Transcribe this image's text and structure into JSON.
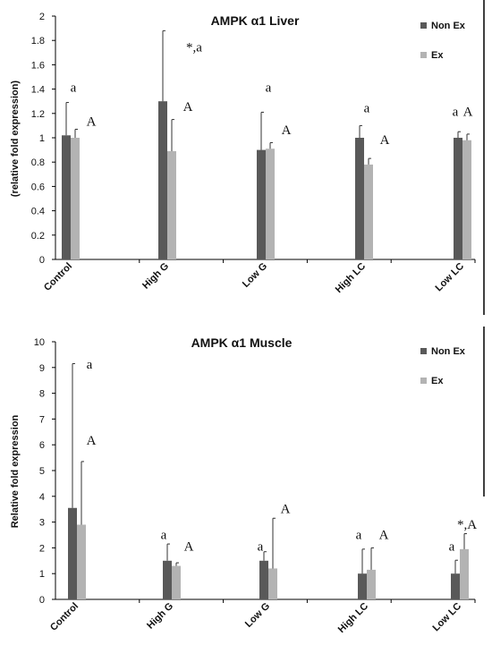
{
  "chart_data": [
    {
      "type": "bar",
      "title": "AMPK α1  Liver",
      "ylabel": "(relative fold expression)",
      "xlabel": "",
      "ylim": [
        0,
        2
      ],
      "yticks": [
        "0",
        "0.2",
        "0.4",
        "0.6",
        "0.8",
        "1",
        "1.2",
        "1.4",
        "1.6",
        "1.8",
        "2"
      ],
      "categories": [
        "Control",
        "High G",
        "Low G",
        "High LC",
        "Low LC"
      ],
      "series": [
        {
          "name": "Non Ex",
          "color": "#595959",
          "values": [
            1.02,
            1.3,
            0.9,
            1.0,
            1.0
          ],
          "error": [
            0.27,
            0.58,
            0.31,
            0.1,
            0.05
          ]
        },
        {
          "name": "Ex",
          "color": "#b3b3b3",
          "values": [
            1.0,
            0.89,
            0.91,
            0.78,
            0.98
          ],
          "error": [
            0.07,
            0.26,
            0.05,
            0.05,
            0.05
          ]
        }
      ],
      "annotations": [
        {
          "text": "a",
          "x": "Control",
          "y": 1.38
        },
        {
          "text": "A",
          "x": "Control",
          "y": 1.1
        },
        {
          "text": "*,a",
          "x": "High G",
          "y": 1.71
        },
        {
          "text": "A",
          "x": "High G",
          "y": 1.22
        },
        {
          "text": "a",
          "x": "Low G",
          "y": 1.38
        },
        {
          "text": "A",
          "x": "Low G",
          "y": 1.03
        },
        {
          "text": "a",
          "x": "High LC",
          "y": 1.21
        },
        {
          "text": "A",
          "x": "High LC",
          "y": 0.95
        },
        {
          "text": "a",
          "x": "Low LC",
          "y": 1.18
        },
        {
          "text": "A",
          "x": "Low LC",
          "y": 1.18
        }
      ],
      "legend_position": "top-right",
      "grid": false
    },
    {
      "type": "bar",
      "title": "AMPK α1 Muscle",
      "ylabel": "Relative fold expression",
      "xlabel": "",
      "ylim": [
        0,
        10
      ],
      "yticks": [
        "0",
        "1",
        "2",
        "3",
        "4",
        "5",
        "6",
        "7",
        "8",
        "9",
        "10"
      ],
      "categories": [
        "Control",
        "High G",
        "Low G",
        "High LC",
        "Low LC"
      ],
      "series": [
        {
          "name": "Non Ex",
          "color": "#595959",
          "values": [
            3.55,
            1.5,
            1.5,
            1.0,
            1.0
          ],
          "error": [
            5.6,
            0.65,
            0.35,
            0.95,
            0.52
          ]
        },
        {
          "name": "Ex",
          "color": "#b3b3b3",
          "values": [
            2.9,
            1.3,
            1.2,
            1.15,
            1.95
          ],
          "error": [
            2.45,
            0.12,
            1.95,
            0.85,
            0.6
          ]
        }
      ],
      "annotations": [
        {
          "text": "a",
          "x": "Control",
          "y": 8.95
        },
        {
          "text": "A",
          "x": "Control",
          "y": 6.0
        },
        {
          "text": "a",
          "x": "High G",
          "y": 2.35
        },
        {
          "text": "A",
          "x": "High G",
          "y": 1.9
        },
        {
          "text": "a",
          "x": "Low G",
          "y": 1.9
        },
        {
          "text": "A",
          "x": "Low G",
          "y": 3.35
        },
        {
          "text": "a",
          "x": "High LC",
          "y": 2.35
        },
        {
          "text": "A",
          "x": "High LC",
          "y": 2.35
        },
        {
          "text": "a",
          "x": "Low LC",
          "y": 1.9
        },
        {
          "text": "*,A",
          "x": "Low LC",
          "y": 2.75
        }
      ],
      "legend_position": "top-right",
      "grid": false
    }
  ]
}
